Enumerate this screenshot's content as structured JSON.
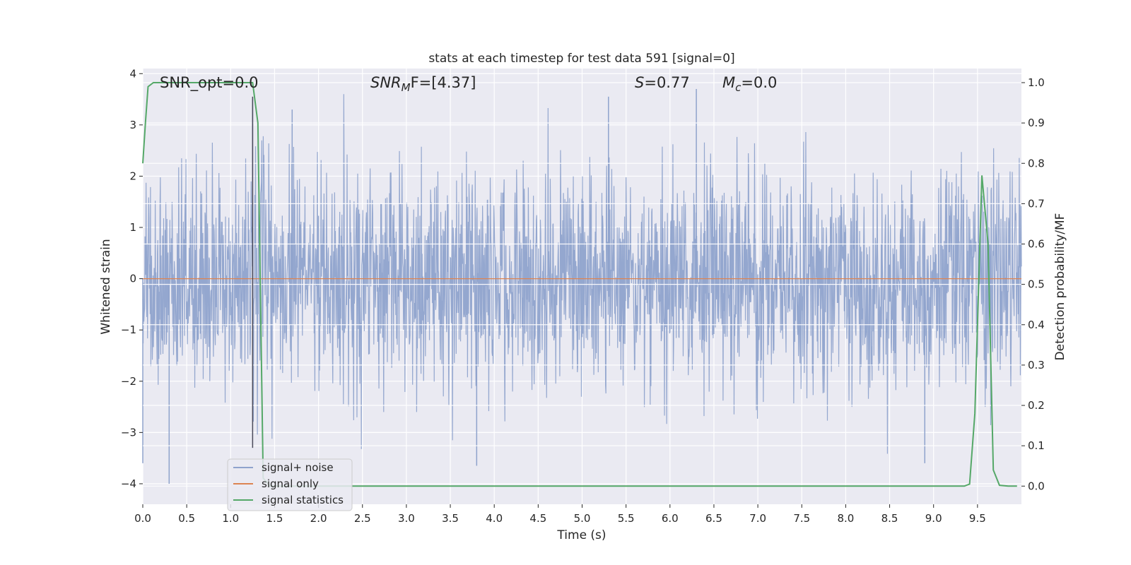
{
  "chart_data": {
    "type": "line",
    "title": "stats at each timestep for test data 591 [signal=0]",
    "xlabel": "Time (s)",
    "ylabel_left": "Whitened strain",
    "ylabel_right": "Detection probability/MF",
    "xlim": [
      0.0,
      10.0
    ],
    "ylim_left": [
      -4.4,
      4.1
    ],
    "ylim_right": [
      -0.045,
      1.035
    ],
    "x_ticks": [
      "0.0",
      "0.5",
      "1.0",
      "1.5",
      "2.0",
      "2.5",
      "3.0",
      "3.5",
      "4.0",
      "4.5",
      "5.0",
      "5.5",
      "6.0",
      "6.5",
      "7.0",
      "7.5",
      "8.0",
      "8.5",
      "9.0",
      "9.5"
    ],
    "y_ticks_left": [
      "−4",
      "−3",
      "−2",
      "−1",
      "0",
      "1",
      "2",
      "3",
      "4"
    ],
    "y_ticks_right": [
      "0.0",
      "0.1",
      "0.2",
      "0.3",
      "0.4",
      "0.5",
      "0.6",
      "0.7",
      "0.8",
      "0.9",
      "1.0"
    ],
    "grid": true,
    "legend_position": "lower-left",
    "annotations": {
      "snr_opt": "SNR_opt=0.0",
      "snr_mf_symbol": "SNR",
      "snr_mf_sub": "M",
      "snr_mf_tail": "F=[4.37]",
      "s_symbol": "S",
      "s_tail": "=0.77",
      "mc_symbol": "M",
      "mc_sub": "c",
      "mc_tail": "=0.0"
    },
    "marker_line_x": 1.25,
    "series": [
      {
        "name": "signal+ noise",
        "color": "#8fa3cc",
        "description_values": "whitened noise, amplitude mostly within ±2, peaks near ±4",
        "peaks": [
          {
            "x": 0.0,
            "y": -3.6
          },
          {
            "x": 0.3,
            "y": -4.0
          },
          {
            "x": 1.25,
            "y": 3.5
          },
          {
            "x": 1.7,
            "y": 3.3
          },
          {
            "x": 3.8,
            "y": -3.65
          },
          {
            "x": 5.3,
            "y": 3.55
          },
          {
            "x": 6.3,
            "y": 3.7
          },
          {
            "x": 8.9,
            "y": -3.6
          }
        ]
      },
      {
        "name": "signal only",
        "color": "#dd8452",
        "x": [
          0.0,
          10.0
        ],
        "y": [
          0.0,
          0.0
        ]
      },
      {
        "name": "signal statistics",
        "color": "#55a868",
        "axis": "right",
        "x": [
          0.0,
          0.03,
          0.06,
          0.12,
          0.5,
          1.0,
          1.25,
          1.31,
          1.37,
          1.45,
          2.0,
          3.0,
          5.0,
          7.0,
          9.0,
          9.35,
          9.41,
          9.47,
          9.55,
          9.62,
          9.68,
          9.75,
          9.85,
          9.95
        ],
        "y": [
          0.8,
          0.9,
          0.99,
          1.0,
          1.0,
          1.0,
          1.0,
          0.9,
          0.02,
          0.0,
          0.0,
          0.0,
          0.0,
          0.0,
          0.0,
          0.0,
          0.005,
          0.18,
          0.77,
          0.6,
          0.04,
          0.002,
          0.0,
          0.0
        ]
      }
    ]
  }
}
